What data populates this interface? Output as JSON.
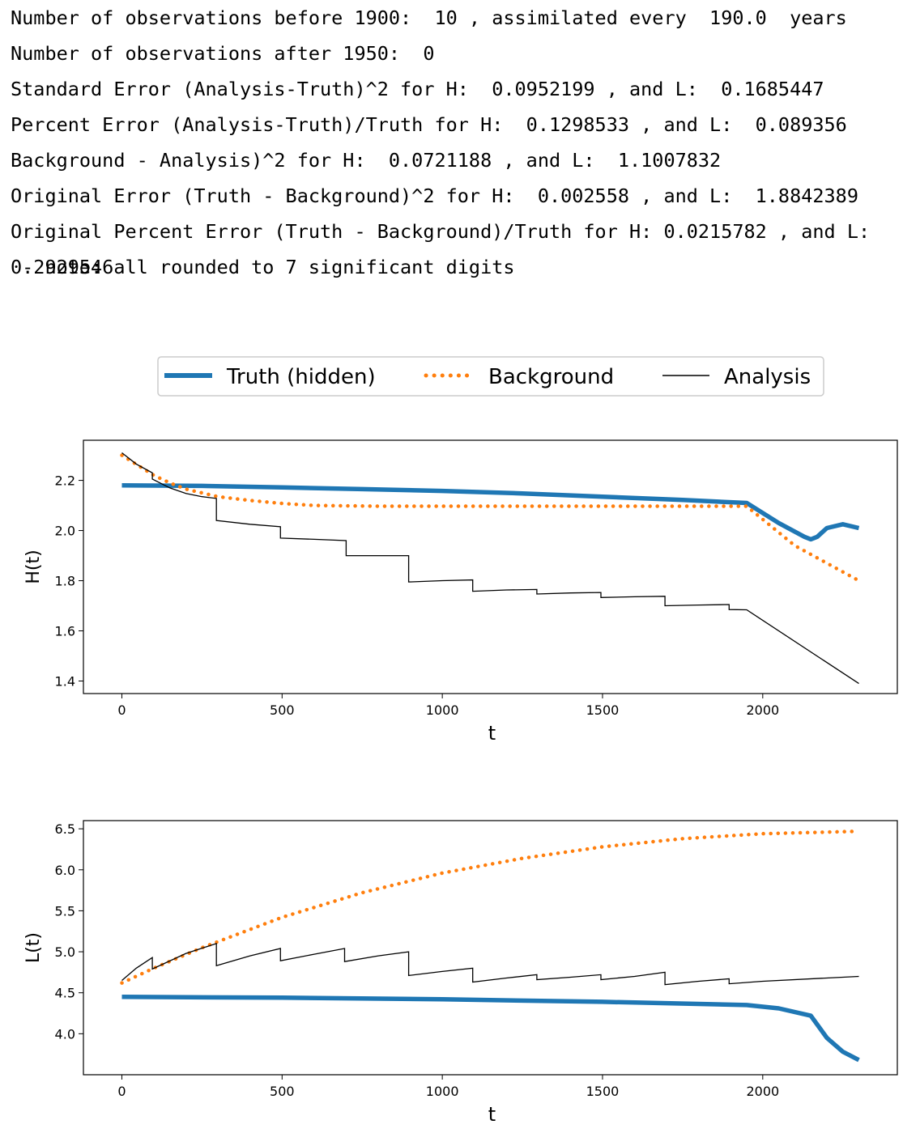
{
  "output": {
    "line1": "Number of observations before 1900:  10 , assimilated every  190.0  years",
    "line2": "Number of observations after 1950:  0",
    "line3": "Standard Error (Analysis-Truth)^2 for H:  0.0952199 , and L:  0.1685447",
    "line4": "Percent Error (Analysis-Truth)/Truth for H:  0.1298533 , and L:  0.089356",
    "line5": "Background - Analysis)^2 for H:  0.0721188 , and L:  1.1007832",
    "line6": "Original Error (Truth - Background)^2 for H:  0.002558 , and L:  1.8842389",
    "line7": "Original Percent Error (Truth - Background)/Truth for H:  0.0215782 , and L: 0.2929546",
    "line8": " - note: all rounded to 7 significant digits"
  },
  "legend": [
    "Truth (hidden)",
    "Background",
    "Analysis"
  ],
  "colors": {
    "truth": "#1f77b4",
    "background": "#ff7f0e",
    "analysis": "#000000"
  },
  "chart_data": [
    {
      "type": "line",
      "xlabel": "t",
      "ylabel": "H(t)",
      "xlim": [
        -120,
        2420
      ],
      "ylim": [
        1.35,
        2.36
      ],
      "xticks": [
        0,
        500,
        1000,
        1500,
        2000
      ],
      "yticks": [
        1.4,
        1.6,
        1.8,
        2.0,
        2.2
      ],
      "ytick_labels": [
        "1.4",
        "1.6",
        "1.8",
        "2.0",
        "2.2"
      ],
      "series": [
        {
          "name": "Truth (hidden)",
          "style": "solid-thick",
          "x": [
            0,
            250,
            500,
            750,
            1000,
            1250,
            1500,
            1750,
            1950,
            2050,
            2130,
            2150,
            2170,
            2200,
            2250,
            2300
          ],
          "y": [
            2.18,
            2.178,
            2.172,
            2.165,
            2.158,
            2.148,
            2.135,
            2.122,
            2.11,
            2.03,
            1.975,
            1.965,
            1.975,
            2.01,
            2.025,
            2.01
          ]
        },
        {
          "name": "Background",
          "style": "dotted",
          "x": [
            0,
            50,
            100,
            150,
            200,
            300,
            400,
            500,
            600,
            800,
            1000,
            1200,
            1500,
            1800,
            1950,
            2100,
            2300
          ],
          "y": [
            2.3,
            2.26,
            2.22,
            2.19,
            2.165,
            2.135,
            2.12,
            2.108,
            2.1,
            2.097,
            2.097,
            2.097,
            2.097,
            2.097,
            2.097,
            1.94,
            1.8
          ]
        },
        {
          "name": "Analysis",
          "style": "solid-thin",
          "x": [
            0,
            45,
            95,
            95,
            150,
            200,
            250,
            295,
            295,
            400,
            495,
            495,
            600,
            700,
            700,
            800,
            895,
            895,
            1000,
            1095,
            1095,
            1200,
            1295,
            1295,
            1400,
            1495,
            1495,
            1600,
            1695,
            1695,
            1800,
            1895,
            1895,
            1950,
            2300
          ],
          "y": [
            2.31,
            2.265,
            2.23,
            2.205,
            2.17,
            2.148,
            2.135,
            2.128,
            2.04,
            2.025,
            2.015,
            1.97,
            1.965,
            1.96,
            1.9,
            1.9,
            1.9,
            1.795,
            1.8,
            1.803,
            1.758,
            1.763,
            1.765,
            1.747,
            1.751,
            1.753,
            1.733,
            1.736,
            1.738,
            1.7,
            1.703,
            1.705,
            1.685,
            1.684,
            1.39
          ]
        }
      ]
    },
    {
      "type": "line",
      "xlabel": "t",
      "ylabel": "L(t)",
      "xlim": [
        -120,
        2420
      ],
      "ylim": [
        3.5,
        6.6
      ],
      "xticks": [
        0,
        500,
        1000,
        1500,
        2000
      ],
      "yticks": [
        4.0,
        4.5,
        5.0,
        5.5,
        6.0,
        6.5
      ],
      "ytick_labels": [
        "4.0",
        "4.5",
        "5.0",
        "5.5",
        "6.0",
        "6.5"
      ],
      "series": [
        {
          "name": "Truth (hidden)",
          "style": "solid-thick",
          "x": [
            0,
            500,
            1000,
            1500,
            1950,
            2050,
            2150,
            2200,
            2250,
            2300
          ],
          "y": [
            4.45,
            4.44,
            4.42,
            4.39,
            4.35,
            4.31,
            4.22,
            3.95,
            3.78,
            3.68
          ]
        },
        {
          "name": "Background",
          "style": "dotted",
          "x": [
            0,
            100,
            250,
            500,
            750,
            1000,
            1250,
            1500,
            1750,
            2000,
            2300
          ],
          "y": [
            4.62,
            4.8,
            5.05,
            5.42,
            5.72,
            5.96,
            6.14,
            6.28,
            6.38,
            6.44,
            6.47
          ]
        },
        {
          "name": "Analysis",
          "style": "solid-thin",
          "x": [
            0,
            45,
            95,
            95,
            200,
            295,
            295,
            400,
            495,
            495,
            600,
            695,
            695,
            800,
            895,
            895,
            1000,
            1095,
            1095,
            1200,
            1295,
            1295,
            1400,
            1495,
            1495,
            1600,
            1695,
            1695,
            1800,
            1895,
            1895,
            2000,
            2300
          ],
          "y": [
            4.65,
            4.8,
            4.93,
            4.79,
            4.98,
            5.1,
            4.83,
            4.95,
            5.04,
            4.89,
            4.97,
            5.04,
            4.88,
            4.95,
            5.0,
            4.71,
            4.76,
            4.8,
            4.63,
            4.68,
            4.72,
            4.66,
            4.69,
            4.72,
            4.66,
            4.7,
            4.75,
            4.6,
            4.64,
            4.67,
            4.61,
            4.64,
            4.7
          ]
        }
      ]
    }
  ]
}
